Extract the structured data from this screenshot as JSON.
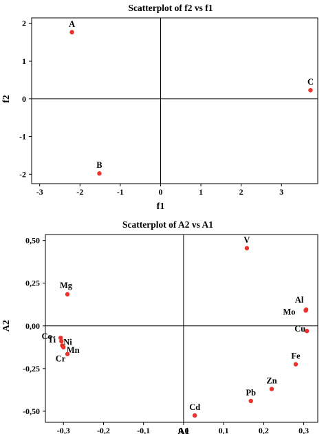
{
  "chart_data": [
    {
      "type": "scatter",
      "title": "Scatterplot of f2 vs f1",
      "xlabel": "f1",
      "ylabel": "f2",
      "xlim": [
        -3.2,
        3.9
      ],
      "ylim": [
        -2.25,
        2.15
      ],
      "xticks": [
        -3,
        -2,
        -1,
        0,
        1,
        2,
        3
      ],
      "xtick_labels": [
        "-3",
        "-2",
        "-1",
        "0",
        "1",
        "2",
        "3"
      ],
      "yticks": [
        -2,
        -1,
        0,
        1,
        2
      ],
      "ytick_labels": [
        "-2",
        "-1",
        "0",
        "1",
        "2"
      ],
      "reference_lines": {
        "x": 0,
        "y": 0
      },
      "marker_color": "#e8322a",
      "points": [
        {
          "label": "A",
          "x": -2.2,
          "y": 1.77
        },
        {
          "label": "B",
          "x": -1.52,
          "y": -1.98
        },
        {
          "label": "C",
          "x": 3.72,
          "y": 0.23
        }
      ]
    },
    {
      "type": "scatter",
      "title": "Scatterplot of A2 vs A1",
      "xlabel": "A1",
      "ylabel": "A2",
      "xlim": [
        -0.345,
        0.335
      ],
      "ylim": [
        -0.565,
        0.535
      ],
      "xticks": [
        -0.3,
        -0.2,
        -0.1,
        0.0,
        0.1,
        0.2,
        0.3
      ],
      "xtick_labels": [
        "-0,3",
        "-0,2",
        "-0,1",
        "0,0",
        "0,1",
        "0,2",
        "0,3"
      ],
      "yticks": [
        -0.5,
        -0.25,
        0.0,
        0.25,
        0.5
      ],
      "ytick_labels": [
        "-0,50",
        "-0,25",
        "0,00",
        "0,25",
        "0,50"
      ],
      "reference_lines": {
        "x": 0,
        "y": 0
      },
      "marker_color": "#e8322a",
      "points": [
        {
          "label": "V",
          "x": 0.158,
          "y": 0.455
        },
        {
          "label": "Mg",
          "x": -0.29,
          "y": 0.185
        },
        {
          "label": "Al",
          "x": 0.306,
          "y": 0.095
        },
        {
          "label": "Mo",
          "x": 0.305,
          "y": 0.09
        },
        {
          "label": "Cu",
          "x": 0.308,
          "y": -0.03
        },
        {
          "label": "Co",
          "x": -0.307,
          "y": -0.07
        },
        {
          "label": "Ti",
          "x": -0.305,
          "y": -0.09
        },
        {
          "label": "Ni",
          "x": -0.303,
          "y": -0.115
        },
        {
          "label": "Mn",
          "x": -0.3,
          "y": -0.125
        },
        {
          "label": "Cr",
          "x": -0.29,
          "y": -0.165
        },
        {
          "label": "Fe",
          "x": 0.28,
          "y": -0.225
        },
        {
          "label": "Zn",
          "x": 0.22,
          "y": -0.37
        },
        {
          "label": "Pb",
          "x": 0.168,
          "y": -0.44
        },
        {
          "label": "Cd",
          "x": 0.028,
          "y": -0.525
        }
      ]
    }
  ]
}
